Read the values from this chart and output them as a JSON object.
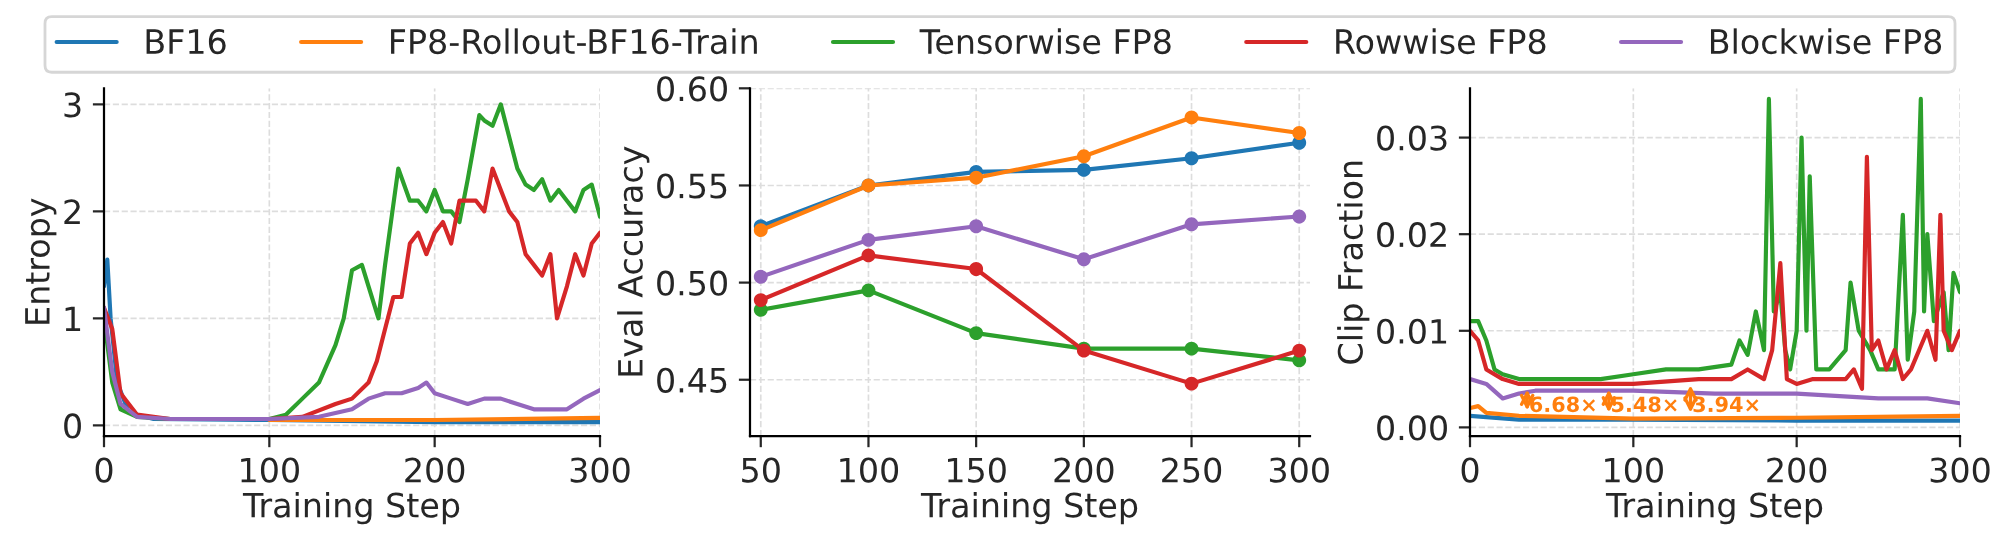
{
  "chart_data": [
    {
      "type": "line",
      "xlabel": "Training Step",
      "ylabel": "Entropy",
      "xlim": [
        0,
        300
      ],
      "ylim": [
        -0.1,
        3.15
      ],
      "xticks": [
        0,
        100,
        200,
        300
      ],
      "yticks": [
        0,
        1,
        2,
        3
      ],
      "grid": true,
      "legend": "top",
      "series": [
        {
          "name": "BF16",
          "color": "#1f77b4",
          "x": [
            0,
            2,
            4,
            8,
            15,
            30,
            100,
            200,
            300
          ],
          "values": [
            1.3,
            1.55,
            1.0,
            0.4,
            0.12,
            0.06,
            0.05,
            0.03,
            0.03
          ]
        },
        {
          "name": "FP8-Rollout-BF16-Train",
          "color": "#ff7f0e",
          "x": [
            100,
            200,
            300
          ],
          "values": [
            0.05,
            0.05,
            0.07
          ]
        },
        {
          "name": "Tensorwise FP8",
          "color": "#2ca02c",
          "x": [
            0,
            5,
            10,
            20,
            40,
            100,
            110,
            120,
            130,
            140,
            145,
            150,
            156,
            160,
            166,
            170,
            178,
            185,
            190,
            195,
            200,
            205,
            210,
            215,
            220,
            227,
            230,
            235,
            240,
            245,
            250,
            255,
            260,
            265,
            270,
            275,
            280,
            285,
            290,
            295,
            300
          ],
          "values": [
            1.0,
            0.4,
            0.15,
            0.08,
            0.06,
            0.06,
            0.1,
            0.25,
            0.4,
            0.75,
            1.0,
            1.45,
            1.5,
            1.3,
            1.0,
            1.5,
            2.4,
            2.1,
            2.1,
            2.0,
            2.2,
            2.0,
            2.0,
            1.9,
            2.3,
            2.9,
            2.85,
            2.8,
            3.0,
            2.7,
            2.4,
            2.25,
            2.2,
            2.3,
            2.1,
            2.2,
            2.1,
            2.0,
            2.2,
            2.25,
            1.95
          ]
        },
        {
          "name": "Rowwise FP8",
          "color": "#d62728",
          "x": [
            0,
            5,
            10,
            20,
            40,
            100,
            120,
            140,
            150,
            160,
            165,
            170,
            175,
            180,
            185,
            190,
            195,
            200,
            205,
            210,
            215,
            220,
            225,
            230,
            235,
            240,
            245,
            250,
            255,
            260,
            265,
            270,
            274,
            280,
            285,
            290,
            295,
            300
          ],
          "values": [
            1.1,
            0.9,
            0.3,
            0.1,
            0.06,
            0.06,
            0.08,
            0.2,
            0.25,
            0.4,
            0.6,
            0.9,
            1.2,
            1.2,
            1.7,
            1.8,
            1.6,
            1.8,
            1.9,
            1.7,
            2.1,
            2.1,
            2.1,
            2.0,
            2.4,
            2.2,
            2.0,
            1.9,
            1.6,
            1.5,
            1.4,
            1.6,
            1.0,
            1.3,
            1.6,
            1.4,
            1.7,
            1.8
          ]
        },
        {
          "name": "Blockwise FP8",
          "color": "#9467bd",
          "x": [
            0,
            5,
            10,
            20,
            40,
            100,
            130,
            150,
            160,
            170,
            180,
            190,
            195,
            200,
            210,
            220,
            230,
            240,
            250,
            260,
            270,
            280,
            290,
            300
          ],
          "values": [
            1.1,
            0.5,
            0.2,
            0.08,
            0.06,
            0.06,
            0.08,
            0.15,
            0.25,
            0.3,
            0.3,
            0.35,
            0.4,
            0.3,
            0.25,
            0.2,
            0.25,
            0.25,
            0.2,
            0.15,
            0.15,
            0.15,
            0.25,
            0.33
          ]
        }
      ]
    },
    {
      "type": "line",
      "xlabel": "Training Step",
      "ylabel": "Eval Accuracy",
      "xlim": [
        45,
        305
      ],
      "ylim": [
        0.421,
        0.6
      ],
      "xticks": [
        50,
        100,
        150,
        200,
        250,
        300
      ],
      "yticks": [
        0.45,
        {
          "value": 0.5,
          "label": "0.50"
        },
        0.55,
        {
          "value": 0.6,
          "label": "0.60"
        }
      ],
      "grid": true,
      "marker": "circle",
      "series": [
        {
          "color": "#1f77b4",
          "x": [
            50,
            100,
            150,
            200,
            250,
            300
          ],
          "values": [
            0.529,
            0.55,
            0.557,
            0.558,
            0.564,
            0.572
          ]
        },
        {
          "color": "#ff7f0e",
          "x": [
            50,
            100,
            150,
            200,
            250,
            300
          ],
          "values": [
            0.527,
            0.55,
            0.554,
            0.565,
            0.585,
            0.577
          ]
        },
        {
          "color": "#2ca02c",
          "x": [
            50,
            100,
            150,
            200,
            250,
            300
          ],
          "values": [
            0.486,
            0.496,
            0.474,
            0.466,
            0.466,
            0.46
          ]
        },
        {
          "color": "#d62728",
          "x": [
            50,
            100,
            150,
            200,
            250,
            300
          ],
          "values": [
            0.491,
            0.514,
            0.507,
            0.465,
            0.448,
            0.465
          ]
        },
        {
          "color": "#9467bd",
          "x": [
            50,
            100,
            150,
            200,
            250,
            300
          ],
          "values": [
            0.503,
            0.522,
            0.529,
            0.512,
            0.53,
            0.534
          ]
        }
      ]
    },
    {
      "type": "line",
      "xlabel": "Training Step",
      "ylabel": "Clip Fraction",
      "xlim": [
        0,
        300
      ],
      "ylim": [
        -0.0009,
        0.0351
      ],
      "xticks": [
        0,
        100,
        200,
        300
      ],
      "yticks": [
        {
          "value": 0,
          "label": "0.00"
        },
        0.01,
        0.02,
        0.03
      ],
      "grid": true,
      "annotations": [
        {
          "text": "6.68×",
          "x": 35,
          "y": 0.0022
        },
        {
          "text": "5.48×",
          "x": 85,
          "y": 0.0022
        },
        {
          "text": "3.94×",
          "x": 135,
          "y": 0.0022
        }
      ],
      "series": [
        {
          "color": "#1f77b4",
          "x": [
            0,
            30,
            100,
            200,
            300
          ],
          "values": [
            0.0012,
            0.0008,
            0.0008,
            0.0007,
            0.0007
          ]
        },
        {
          "color": "#ff7f0e",
          "x": [
            0,
            5,
            10,
            30,
            100,
            200,
            300
          ],
          "values": [
            0.002,
            0.0022,
            0.0015,
            0.0012,
            0.0009,
            0.001,
            0.0012
          ]
        },
        {
          "color": "#2ca02c",
          "x": [
            0,
            5,
            10,
            15,
            20,
            30,
            50,
            80,
            100,
            120,
            140,
            160,
            165,
            170,
            175,
            180,
            183,
            186,
            190,
            193,
            196,
            200,
            203,
            206,
            208,
            212,
            220,
            230,
            233,
            238,
            245,
            250,
            255,
            260,
            265,
            268,
            272,
            276,
            278,
            280,
            284,
            290,
            293,
            296,
            300
          ],
          "values": [
            0.011,
            0.011,
            0.009,
            0.006,
            0.0055,
            0.005,
            0.005,
            0.005,
            0.0055,
            0.006,
            0.006,
            0.0065,
            0.009,
            0.0075,
            0.012,
            0.008,
            0.034,
            0.012,
            0.014,
            0.008,
            0.006,
            0.01,
            0.03,
            0.01,
            0.026,
            0.006,
            0.006,
            0.008,
            0.015,
            0.01,
            0.008,
            0.006,
            0.006,
            0.006,
            0.022,
            0.007,
            0.012,
            0.034,
            0.012,
            0.02,
            0.011,
            0.014,
            0.008,
            0.016,
            0.014
          ]
        },
        {
          "color": "#d62728",
          "x": [
            0,
            5,
            10,
            20,
            30,
            60,
            100,
            140,
            160,
            170,
            180,
            185,
            190,
            194,
            200,
            210,
            220,
            230,
            235,
            240,
            243,
            246,
            250,
            255,
            260,
            265,
            270,
            280,
            285,
            288,
            290,
            295,
            300
          ],
          "values": [
            0.01,
            0.009,
            0.006,
            0.005,
            0.0045,
            0.0045,
            0.0045,
            0.005,
            0.005,
            0.006,
            0.005,
            0.008,
            0.017,
            0.005,
            0.0045,
            0.005,
            0.005,
            0.005,
            0.006,
            0.004,
            0.028,
            0.008,
            0.009,
            0.006,
            0.008,
            0.005,
            0.006,
            0.01,
            0.007,
            0.022,
            0.01,
            0.008,
            0.01
          ]
        },
        {
          "color": "#9467bd",
          "x": [
            0,
            10,
            20,
            30,
            40,
            100,
            150,
            200,
            250,
            280,
            300
          ],
          "values": [
            0.005,
            0.0045,
            0.003,
            0.0035,
            0.0038,
            0.0038,
            0.0035,
            0.0035,
            0.003,
            0.003,
            0.0025
          ]
        }
      ]
    }
  ]
}
